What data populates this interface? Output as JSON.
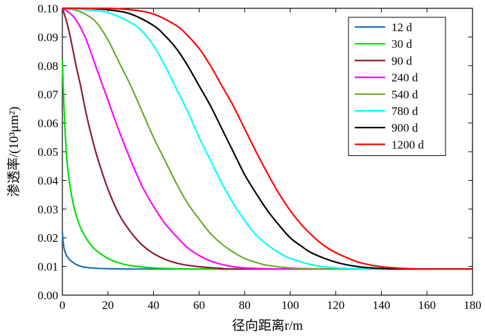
{
  "chart_data": {
    "type": "line",
    "xlabel": "径向距离r/m",
    "ylabel": "渗透率/(10³μm²)",
    "xlim": [
      0,
      180
    ],
    "ylim": [
      0,
      0.1
    ],
    "xticks": [
      "0",
      "20",
      "40",
      "60",
      "80",
      "100",
      "120",
      "140",
      "160",
      "180"
    ],
    "yticks": [
      "0.00",
      "0.01",
      "0.02",
      "0.03",
      "0.04",
      "0.05",
      "0.06",
      "0.07",
      "0.08",
      "0.09",
      "0.10"
    ],
    "legend_position": "top-right",
    "series": [
      {
        "name": "12 d",
        "color": "#1f6fb4",
        "x": [
          0,
          0.3,
          0.6,
          1,
          1.5,
          2,
          3,
          4,
          5,
          6,
          8,
          10,
          14,
          20,
          30,
          40,
          60,
          100,
          180
        ],
        "y": [
          0.022,
          0.019,
          0.017,
          0.0155,
          0.0145,
          0.0135,
          0.0125,
          0.0118,
          0.0112,
          0.0107,
          0.0101,
          0.0097,
          0.0094,
          0.0092,
          0.0091,
          0.0091,
          0.0091,
          0.0091,
          0.0091
        ]
      },
      {
        "name": "30 d",
        "color": "#00e000",
        "x": [
          0,
          0.5,
          1,
          1.5,
          2,
          3,
          4,
          5,
          6,
          8,
          10,
          12,
          15,
          20,
          25,
          30,
          40,
          50,
          60,
          80,
          180
        ],
        "y": [
          0.082,
          0.07,
          0.06,
          0.053,
          0.047,
          0.04,
          0.035,
          0.031,
          0.028,
          0.0235,
          0.0205,
          0.018,
          0.0155,
          0.0128,
          0.0112,
          0.0103,
          0.0095,
          0.0092,
          0.0091,
          0.0091,
          0.0091
        ]
      },
      {
        "name": "90 d",
        "color": "#8b1a2b",
        "x": [
          0,
          2,
          4,
          6,
          8,
          10,
          12,
          15,
          20,
          25,
          30,
          35,
          40,
          45,
          50,
          55,
          60,
          70,
          80,
          180
        ],
        "y": [
          0.1,
          0.095,
          0.088,
          0.08,
          0.073,
          0.065,
          0.058,
          0.049,
          0.037,
          0.028,
          0.022,
          0.0175,
          0.0145,
          0.0125,
          0.0112,
          0.0104,
          0.0099,
          0.0093,
          0.0091,
          0.0091
        ]
      },
      {
        "name": "240 d",
        "color": "#ff00ff",
        "x": [
          0,
          5,
          10,
          15,
          20,
          25,
          30,
          35,
          40,
          45,
          50,
          55,
          60,
          65,
          70,
          75,
          80,
          90,
          100,
          180
        ],
        "y": [
          0.1,
          0.097,
          0.09,
          0.079,
          0.068,
          0.057,
          0.047,
          0.038,
          0.031,
          0.025,
          0.0205,
          0.0165,
          0.0138,
          0.0119,
          0.0107,
          0.0099,
          0.0095,
          0.0092,
          0.0091,
          0.0091
        ]
      },
      {
        "name": "540 d",
        "color": "#6aaa2a",
        "x": [
          0,
          5,
          10,
          15,
          20,
          25,
          30,
          35,
          40,
          45,
          50,
          55,
          60,
          65,
          70,
          75,
          80,
          85,
          90,
          100,
          110,
          120,
          180
        ],
        "y": [
          0.1,
          0.0995,
          0.098,
          0.095,
          0.089,
          0.081,
          0.073,
          0.064,
          0.055,
          0.047,
          0.039,
          0.032,
          0.0265,
          0.0215,
          0.0178,
          0.015,
          0.0128,
          0.0114,
          0.0104,
          0.0095,
          0.0092,
          0.0091,
          0.0091
        ]
      },
      {
        "name": "780 d",
        "color": "#00ffff",
        "x": [
          0,
          10,
          20,
          30,
          35,
          40,
          45,
          50,
          55,
          60,
          65,
          70,
          75,
          80,
          85,
          90,
          95,
          100,
          110,
          120,
          130,
          140,
          180
        ],
        "y": [
          0.1,
          0.0995,
          0.0985,
          0.095,
          0.092,
          0.087,
          0.08,
          0.072,
          0.064,
          0.055,
          0.047,
          0.039,
          0.032,
          0.026,
          0.021,
          0.0175,
          0.0148,
          0.0128,
          0.0105,
          0.0095,
          0.0092,
          0.0091,
          0.0091
        ]
      },
      {
        "name": "900 d",
        "color": "#000000",
        "x": [
          0,
          10,
          20,
          30,
          40,
          45,
          50,
          55,
          60,
          65,
          70,
          75,
          80,
          85,
          90,
          95,
          100,
          105,
          110,
          120,
          130,
          140,
          150,
          180
        ],
        "y": [
          0.1,
          0.1,
          0.0995,
          0.098,
          0.094,
          0.0905,
          0.086,
          0.08,
          0.073,
          0.066,
          0.058,
          0.05,
          0.042,
          0.0355,
          0.0295,
          0.0245,
          0.02,
          0.017,
          0.0145,
          0.0115,
          0.0099,
          0.0093,
          0.0091,
          0.0091
        ]
      },
      {
        "name": "1200 d",
        "color": "#ff0000",
        "x": [
          0,
          10,
          20,
          30,
          40,
          50,
          55,
          60,
          65,
          70,
          75,
          80,
          85,
          90,
          95,
          100,
          105,
          110,
          115,
          120,
          130,
          140,
          150,
          160,
          180
        ],
        "y": [
          0.1,
          0.1,
          0.1,
          0.0995,
          0.098,
          0.094,
          0.0905,
          0.086,
          0.08,
          0.073,
          0.066,
          0.058,
          0.05,
          0.0425,
          0.0355,
          0.0295,
          0.0245,
          0.0205,
          0.0172,
          0.0148,
          0.0115,
          0.0099,
          0.0093,
          0.0091,
          0.0091
        ]
      }
    ]
  }
}
